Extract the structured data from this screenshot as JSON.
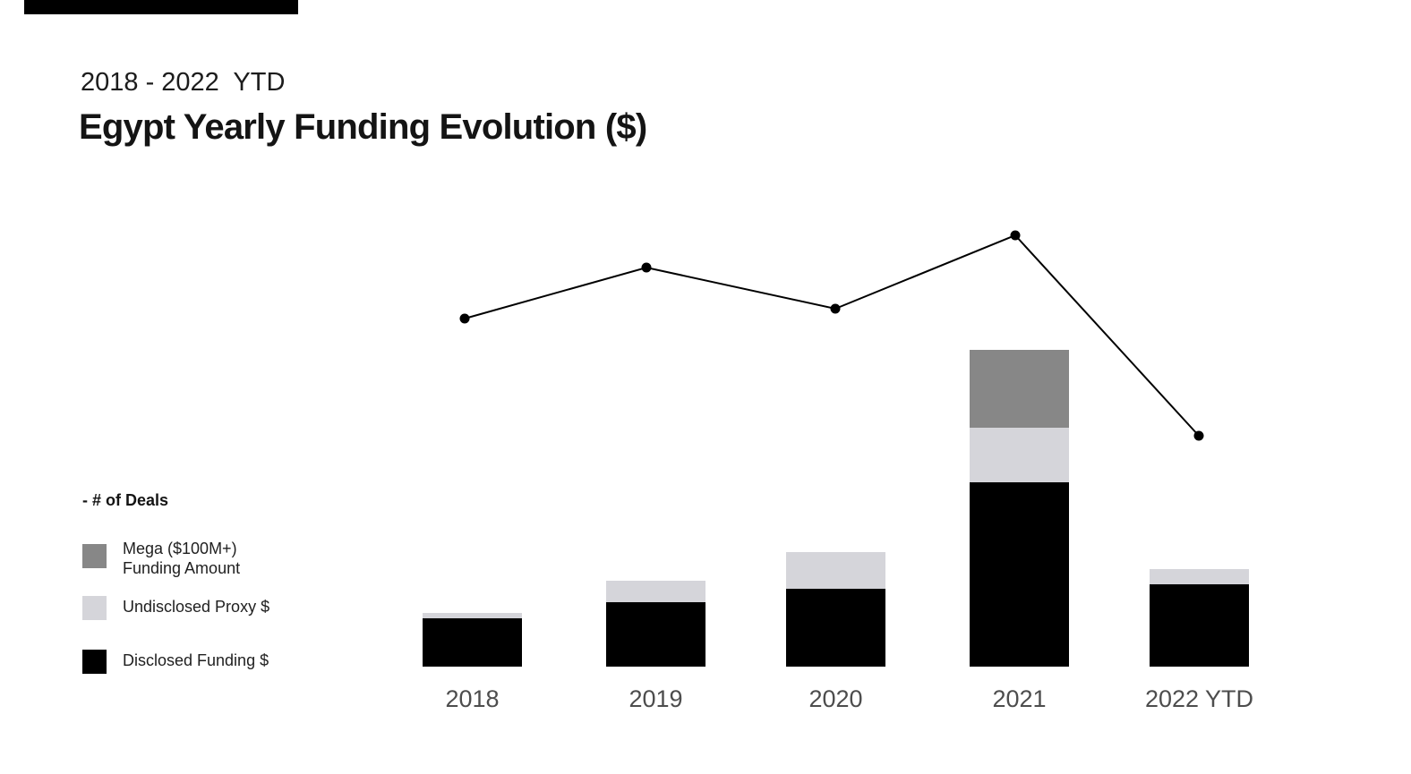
{
  "page": {
    "subtitle": "2018 - 2022  YTD",
    "title": "Egypt Yearly Funding Evolution ($)"
  },
  "legend": {
    "deals_label": "- # of Deals",
    "items": [
      {
        "id": "mega",
        "label_line1": "Mega ($100M+)",
        "label_line2": "Funding Amount",
        "color": "#878787"
      },
      {
        "id": "undisclosed",
        "label": "Undisclosed Proxy $",
        "color": "#d5d5da"
      },
      {
        "id": "disclosed",
        "label": "Disclosed Funding $",
        "color": "#000000"
      }
    ]
  },
  "chart_data": [
    {
      "type": "bar",
      "stacked": true,
      "title": "Egypt Yearly Funding Evolution ($)",
      "subtitle": "2018 - 2022  YTD",
      "categories": [
        "2018",
        "2019",
        "2020",
        "2021",
        "2022 YTD"
      ],
      "value_units": "relative (no numeric axis shown in chart; values are rendered segment heights in px)",
      "series": [
        {
          "id": "disclosed",
          "name": "Disclosed Funding $",
          "color": "#000000",
          "values": [
            54,
            72,
            87,
            206,
            92
          ]
        },
        {
          "id": "undisclosed",
          "name": "Undisclosed Proxy $",
          "color": "#d5d5da",
          "values": [
            6,
            24,
            41,
            61,
            17
          ]
        },
        {
          "id": "mega",
          "name": "Mega ($100M+) Funding Amount",
          "color": "#878787",
          "values": [
            0,
            0,
            0,
            87,
            0
          ]
        }
      ],
      "axes": "no y-axis, no gridlines; category labels only",
      "legend_position": "left"
    },
    {
      "type": "line",
      "name": "# of Deals",
      "categories": [
        "2018",
        "2019",
        "2020",
        "2021",
        "2022 YTD"
      ],
      "value_units": "relative (no numeric axis shown; values are rendered heights above bar baseline in px)",
      "values": [
        389,
        446,
        400,
        482,
        258
      ],
      "marker": "filled-circle",
      "color": "#000000"
    }
  ]
}
